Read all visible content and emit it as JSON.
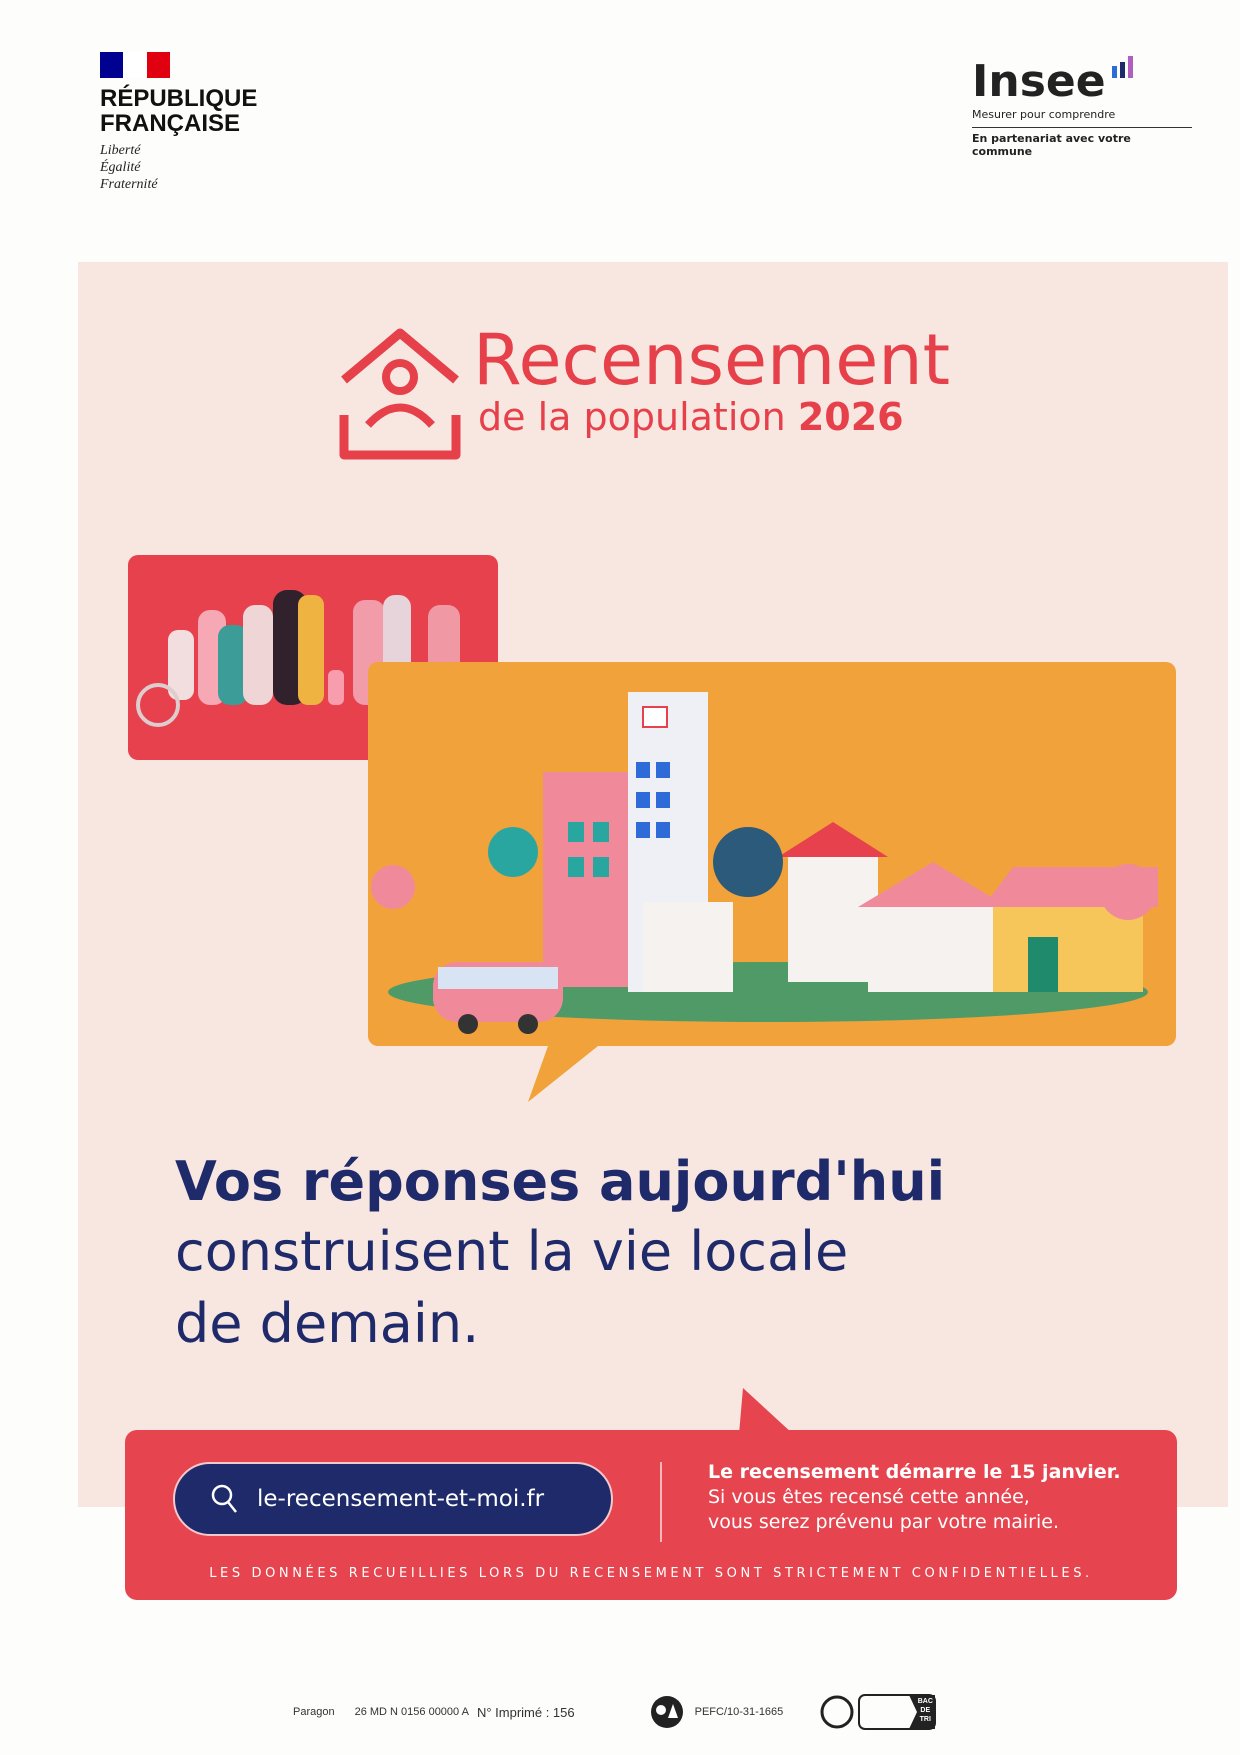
{
  "header": {
    "republique": {
      "name_line1": "RÉPUBLIQUE",
      "name_line2": "FRANÇAISE",
      "motto": [
        "Liberté",
        "Égalité",
        "Fraternité"
      ],
      "flag_colors": [
        "#000091",
        "#ffffff",
        "#e1000f"
      ]
    },
    "insee": {
      "logo_text": "Insee",
      "tagline": "Mesurer pour comprendre",
      "partnership": "En partenariat avec votre commune",
      "bar_colors": [
        "#2f6bd8",
        "#1f2a6b",
        "#b05fc0"
      ]
    }
  },
  "poster": {
    "title": "Recensement",
    "subtitle": "de la population",
    "year": "2026",
    "headline_bold": "Vos réponses aujourd'hui",
    "headline_line2": "construisent la vie locale",
    "headline_line3": "de demain.",
    "colors": {
      "background": "#f8e7e0",
      "red": "#e6454f",
      "orange": "#f2a23a",
      "navy": "#1f2a6b"
    }
  },
  "banner": {
    "website": "le-recensement-et-moi.fr",
    "search_icon": "search-icon",
    "info_bold": "Le recensement démarre le 15 janvier.",
    "info_line2": "Si vous êtes recensé cette année,",
    "info_line3": "vous serez prévenu par votre mairie.",
    "confidential": "LES DONNÉES RECUEILLIES LORS DU RECENSEMENT SONT STRICTEMENT CONFIDENTIELLES."
  },
  "footer": {
    "printer": "Paragon",
    "reference": "26 MD N 0156 00000 A",
    "print_number": "N° Imprimé : 156",
    "pefc": "PEFC/10-31-1665",
    "triman_label": "BAC DE TRI"
  }
}
